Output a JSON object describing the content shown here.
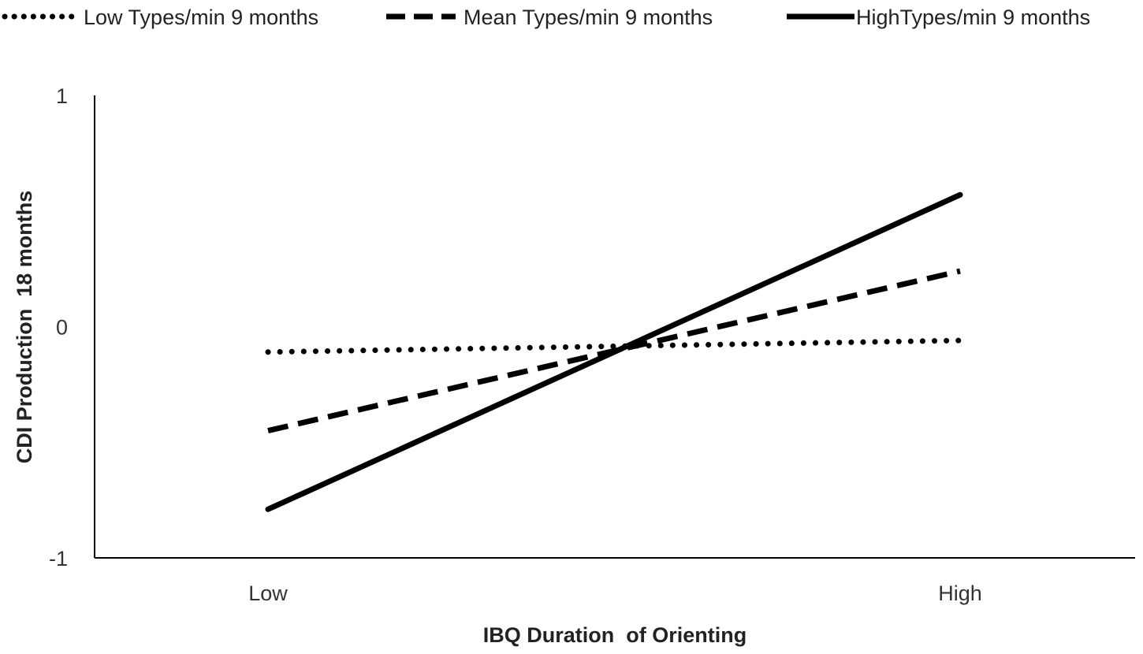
{
  "chart_data": {
    "type": "line",
    "title": "",
    "categories": [
      "Low",
      "High"
    ],
    "xlabel": "IBQ Duration  of Orienting",
    "ylabel": "CDI Production  18 months",
    "ylim": [
      -1,
      1
    ],
    "yticks": [
      1,
      0,
      -1
    ],
    "ytick_labels": [
      "1",
      "0",
      "-1"
    ],
    "grid": false,
    "legend_position": "top",
    "series": [
      {
        "name": "Low Types/min 9 months",
        "style": "dotted",
        "values": [
          -0.11,
          -0.06
        ]
      },
      {
        "name": "Mean Types/min 9 months",
        "style": "dashed",
        "values": [
          -0.45,
          0.24
        ]
      },
      {
        "name": "HighTypes/min 9 months",
        "style": "solid",
        "values": [
          -0.79,
          0.57
        ]
      }
    ],
    "line_color": "#000000"
  }
}
